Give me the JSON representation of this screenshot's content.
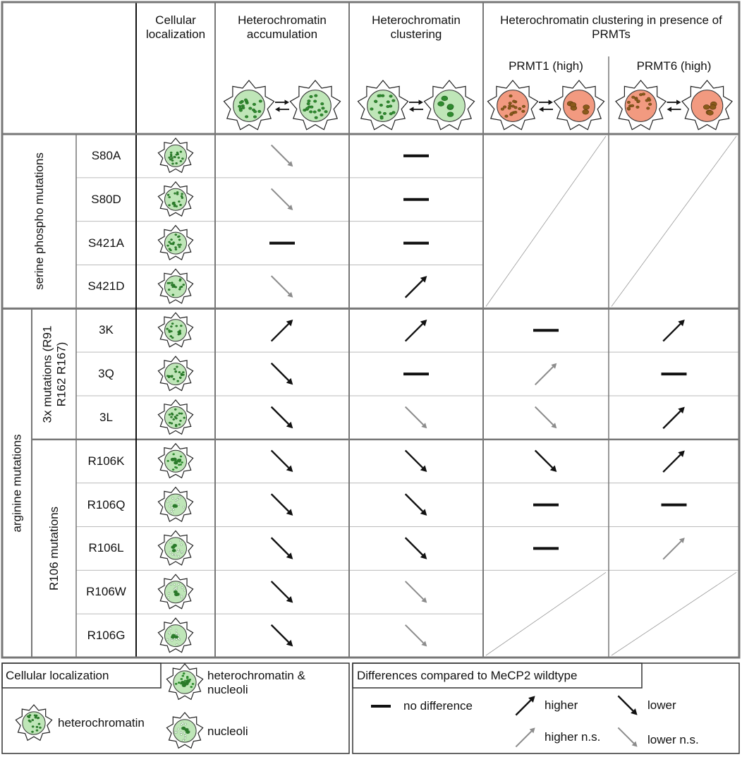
{
  "columns": [
    "Cellular localization",
    "Heterochromatin accumulation",
    "Heterochromatin clustering"
  ],
  "prmt_header": "Heterochromatin clustering in presence of PRMTs",
  "prmt_columns": [
    "PRMT1 (high)",
    "PRMT6 (high)"
  ],
  "groups": [
    {
      "label": "serine phospho mutations",
      "rows": [
        {
          "name": "S80A",
          "localization": "heterochromatin",
          "effects": [
            "lower n.s.",
            "no difference",
            null,
            null
          ]
        },
        {
          "name": "S80D",
          "localization": "heterochromatin",
          "effects": [
            "lower n.s.",
            "no difference",
            null,
            null
          ]
        },
        {
          "name": "S421A",
          "localization": "heterochromatin",
          "effects": [
            "no difference",
            "no difference",
            null,
            null
          ]
        },
        {
          "name": "S421D",
          "localization": "heterochromatin",
          "effects": [
            "lower n.s.",
            "higher",
            null,
            null
          ]
        }
      ]
    },
    {
      "label": "arginine mutations",
      "subgroups": [
        {
          "label": "3x mutations (R91 R162 R167)",
          "rows": [
            {
              "name": "3K",
              "localization": "heterochromatin",
              "effects": [
                "higher",
                "higher",
                "no difference",
                "higher"
              ]
            },
            {
              "name": "3Q",
              "localization": "heterochromatin",
              "effects": [
                "lower",
                "no difference",
                "higher n.s.",
                "no difference"
              ]
            },
            {
              "name": "3L",
              "localization": "heterochromatin",
              "effects": [
                "lower",
                "lower n.s.",
                "lower n.s.",
                "higher"
              ]
            }
          ]
        },
        {
          "label": "R106 mutations",
          "rows": [
            {
              "name": "R106K",
              "localization": "heterochromatin & nucleoli",
              "effects": [
                "lower",
                "lower",
                "lower",
                "higher"
              ]
            },
            {
              "name": "R106Q",
              "localization": "nucleoli",
              "effects": [
                "lower",
                "lower",
                "no difference",
                "no difference"
              ]
            },
            {
              "name": "R106L",
              "localization": "nucleoli",
              "effects": [
                "lower",
                "lower",
                "no difference",
                "higher n.s."
              ]
            },
            {
              "name": "R106W",
              "localization": "nucleoli",
              "effects": [
                "lower",
                "lower n.s.",
                null,
                null
              ]
            },
            {
              "name": "R106G",
              "localization": "nucleoli",
              "effects": [
                "lower",
                "lower n.s.",
                null,
                null
              ]
            }
          ]
        }
      ]
    }
  ],
  "legend": {
    "localization": {
      "title": "Cellular localization",
      "items": [
        "heterochromatin",
        "heterochromatin & nucleoli",
        "nucleoli"
      ]
    },
    "differences": {
      "title": "Differences compared to MeCP2 wildtype",
      "items": [
        "no difference",
        "higher",
        "lower",
        "higher n.s.",
        "lower n.s."
      ]
    }
  }
}
